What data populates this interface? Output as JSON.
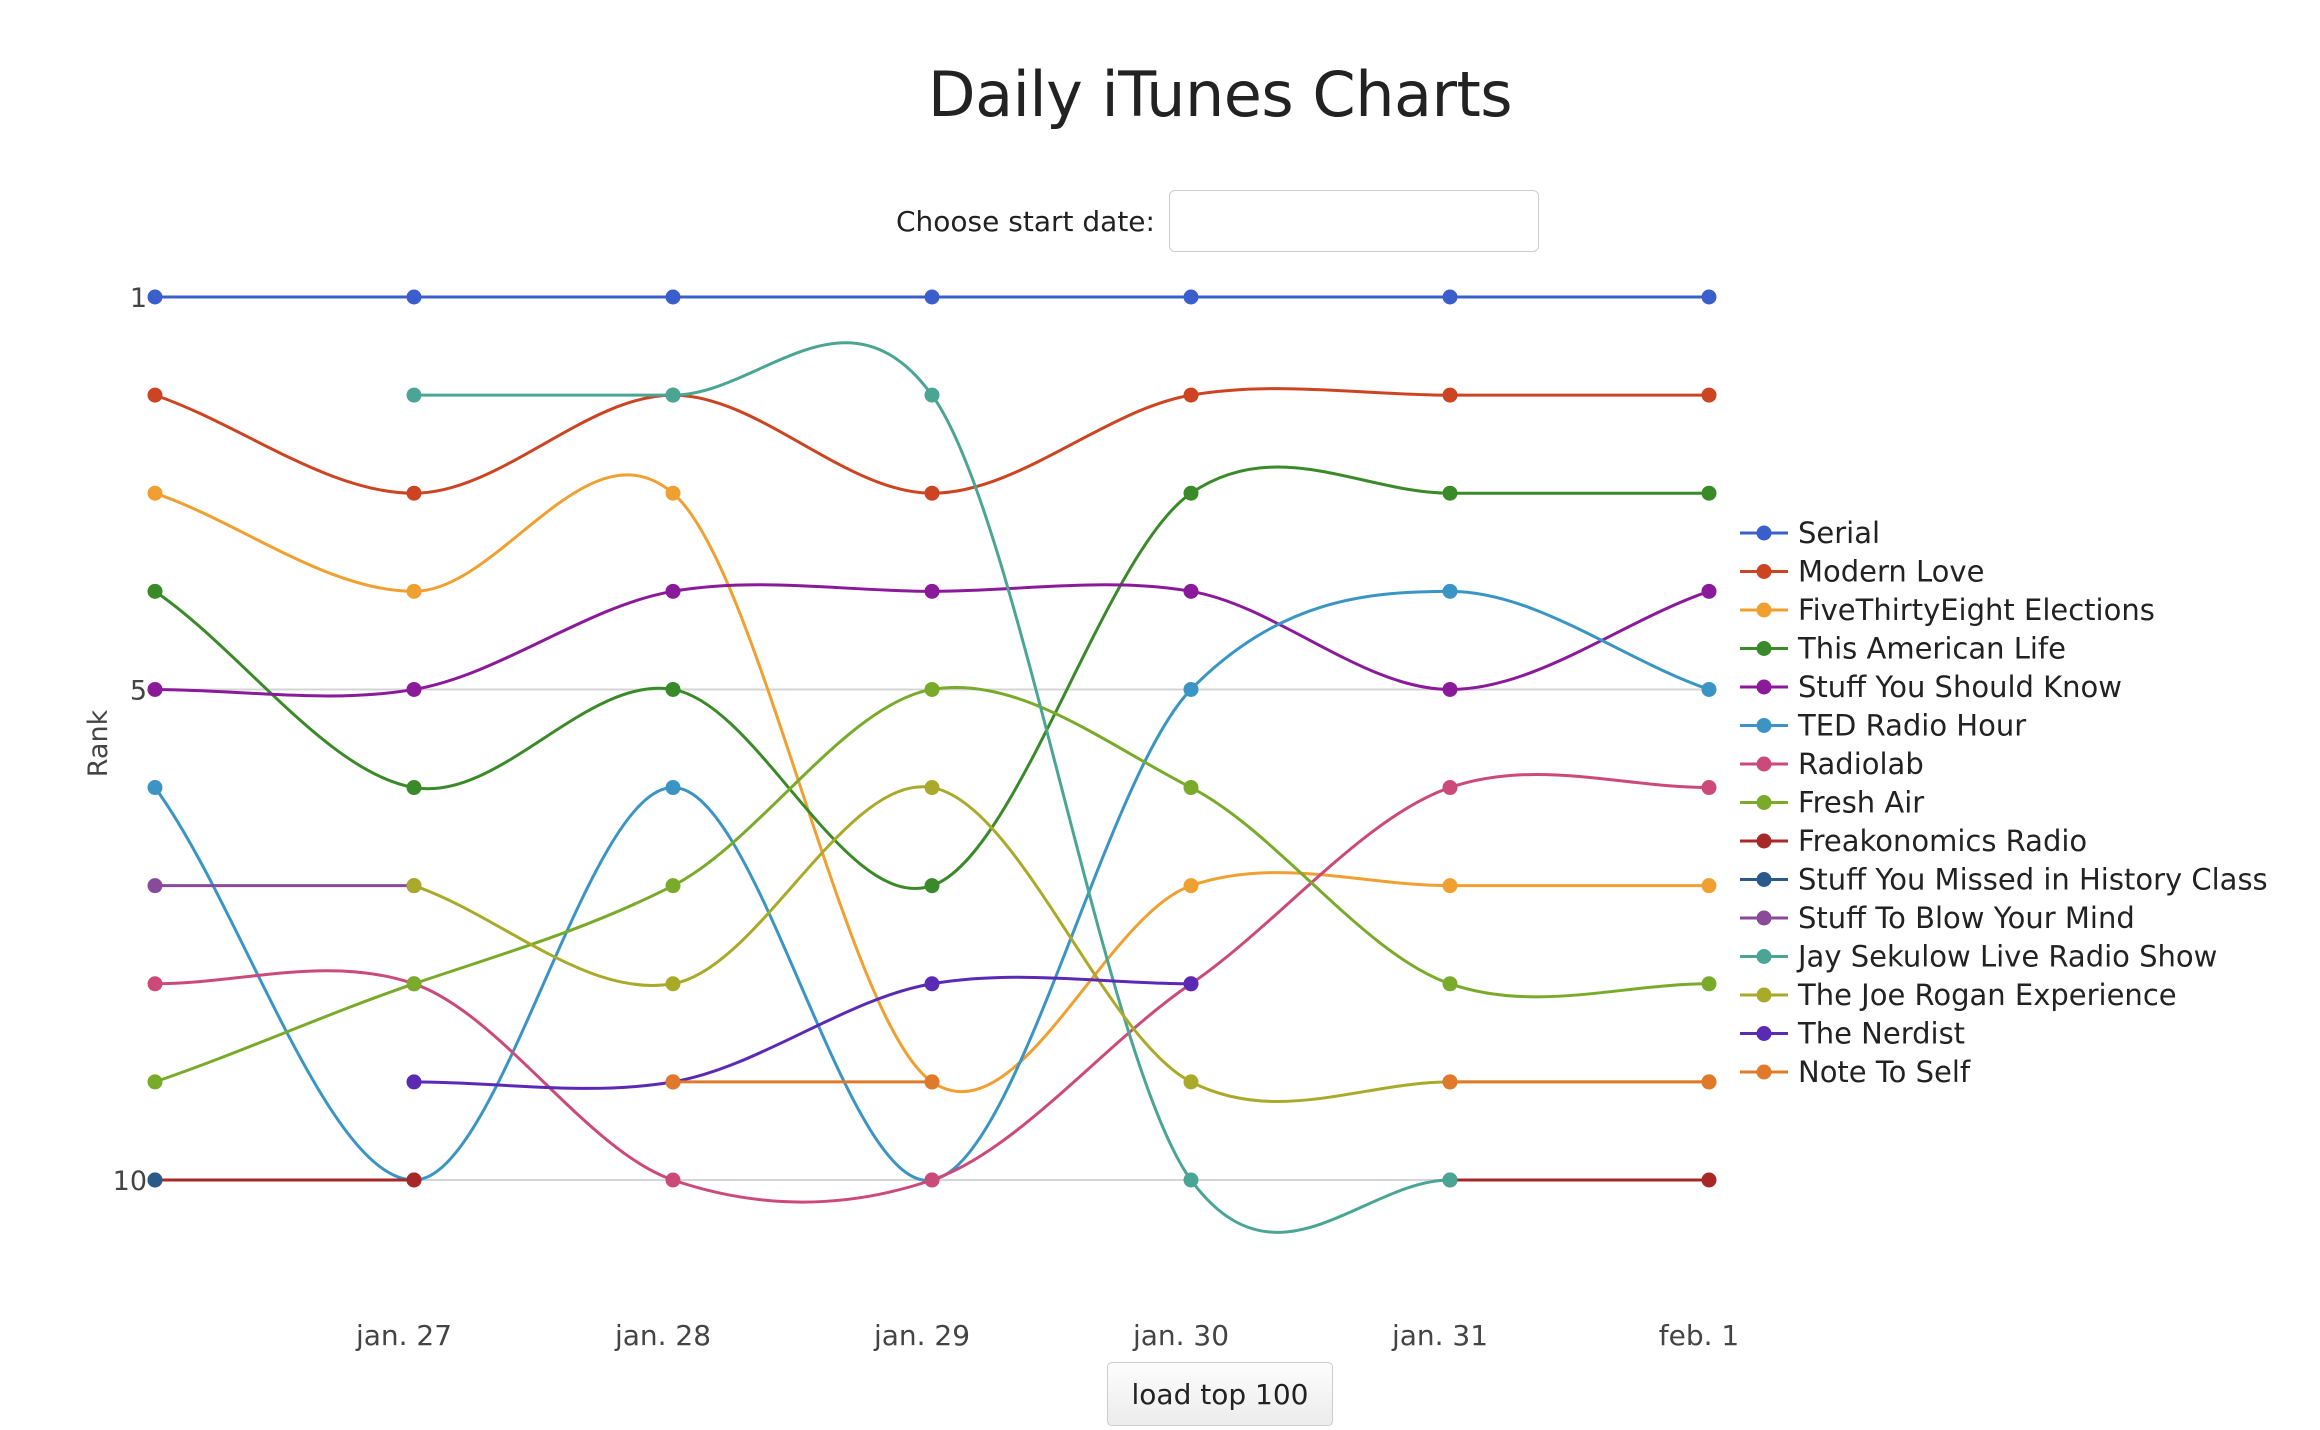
{
  "title": "Daily iTunes Charts",
  "date_picker": {
    "label": "Choose start date:",
    "value": "",
    "placeholder": ""
  },
  "load_button": "load top 100",
  "chart_data": {
    "type": "line",
    "title": "Daily iTunes Charts",
    "xlabel": "",
    "ylabel": "Rank",
    "x": [
      "",
      "jan. 27",
      "jan. 28",
      "jan. 29",
      "jan. 30",
      "jan. 31",
      "feb. 1"
    ],
    "y_ticks": [
      1,
      5,
      10
    ],
    "ylim": [
      1,
      10
    ],
    "y_reversed": true,
    "grid": true,
    "legend_position": "right",
    "series": [
      {
        "name": "Serial",
        "color": "#3a5fcd",
        "values": [
          1,
          1,
          1,
          1,
          1,
          1,
          1
        ]
      },
      {
        "name": "Modern Love",
        "color": "#cc4422",
        "values": [
          2,
          3,
          2,
          3,
          2,
          2,
          2
        ]
      },
      {
        "name": "FiveThirtyEight Elections",
        "color": "#f0a030",
        "values": [
          3,
          4,
          3,
          9,
          7,
          7,
          7
        ]
      },
      {
        "name": "This American Life",
        "color": "#3a8a2a",
        "values": [
          4,
          6,
          5,
          7,
          3,
          3,
          3
        ]
      },
      {
        "name": "Stuff You Should Know",
        "color": "#8a1a9a",
        "values": [
          5,
          5,
          4,
          4,
          4,
          5,
          4
        ]
      },
      {
        "name": "TED Radio Hour",
        "color": "#3a95c5",
        "values": [
          6,
          10,
          6,
          10,
          5,
          4,
          5
        ]
      },
      {
        "name": "Radiolab",
        "color": "#cc4a7a",
        "values": [
          8,
          8,
          10,
          10,
          8,
          6,
          6
        ]
      },
      {
        "name": "Fresh Air",
        "color": "#7aaa2a",
        "values": [
          9,
          8,
          7,
          5,
          6,
          8,
          8
        ]
      },
      {
        "name": "Freakonomics Radio",
        "color": "#a82828",
        "values": [
          10,
          10,
          null,
          null,
          null,
          10,
          10
        ]
      },
      {
        "name": "Stuff You Missed in History Class",
        "color": "#2a5a8a",
        "values": [
          10,
          null,
          null,
          null,
          null,
          null,
          null
        ]
      },
      {
        "name": "Stuff To Blow Your Mind",
        "color": "#8a4a9a",
        "values": [
          7,
          7,
          null,
          null,
          null,
          null,
          null
        ]
      },
      {
        "name": "Jay Sekulow Live Radio Show",
        "color": "#4aa595",
        "values": [
          null,
          2,
          2,
          2,
          10,
          10,
          null
        ]
      },
      {
        "name": "The Joe Rogan Experience",
        "color": "#aaaa2a",
        "values": [
          null,
          7,
          8,
          6,
          9,
          9,
          9
        ]
      },
      {
        "name": "The Nerdist",
        "color": "#5a2ab5",
        "values": [
          null,
          9,
          9,
          8,
          8,
          null,
          null
        ]
      },
      {
        "name": "Note To Self",
        "color": "#e07a2a",
        "values": [
          null,
          null,
          9,
          9,
          null,
          9,
          9
        ]
      }
    ]
  }
}
